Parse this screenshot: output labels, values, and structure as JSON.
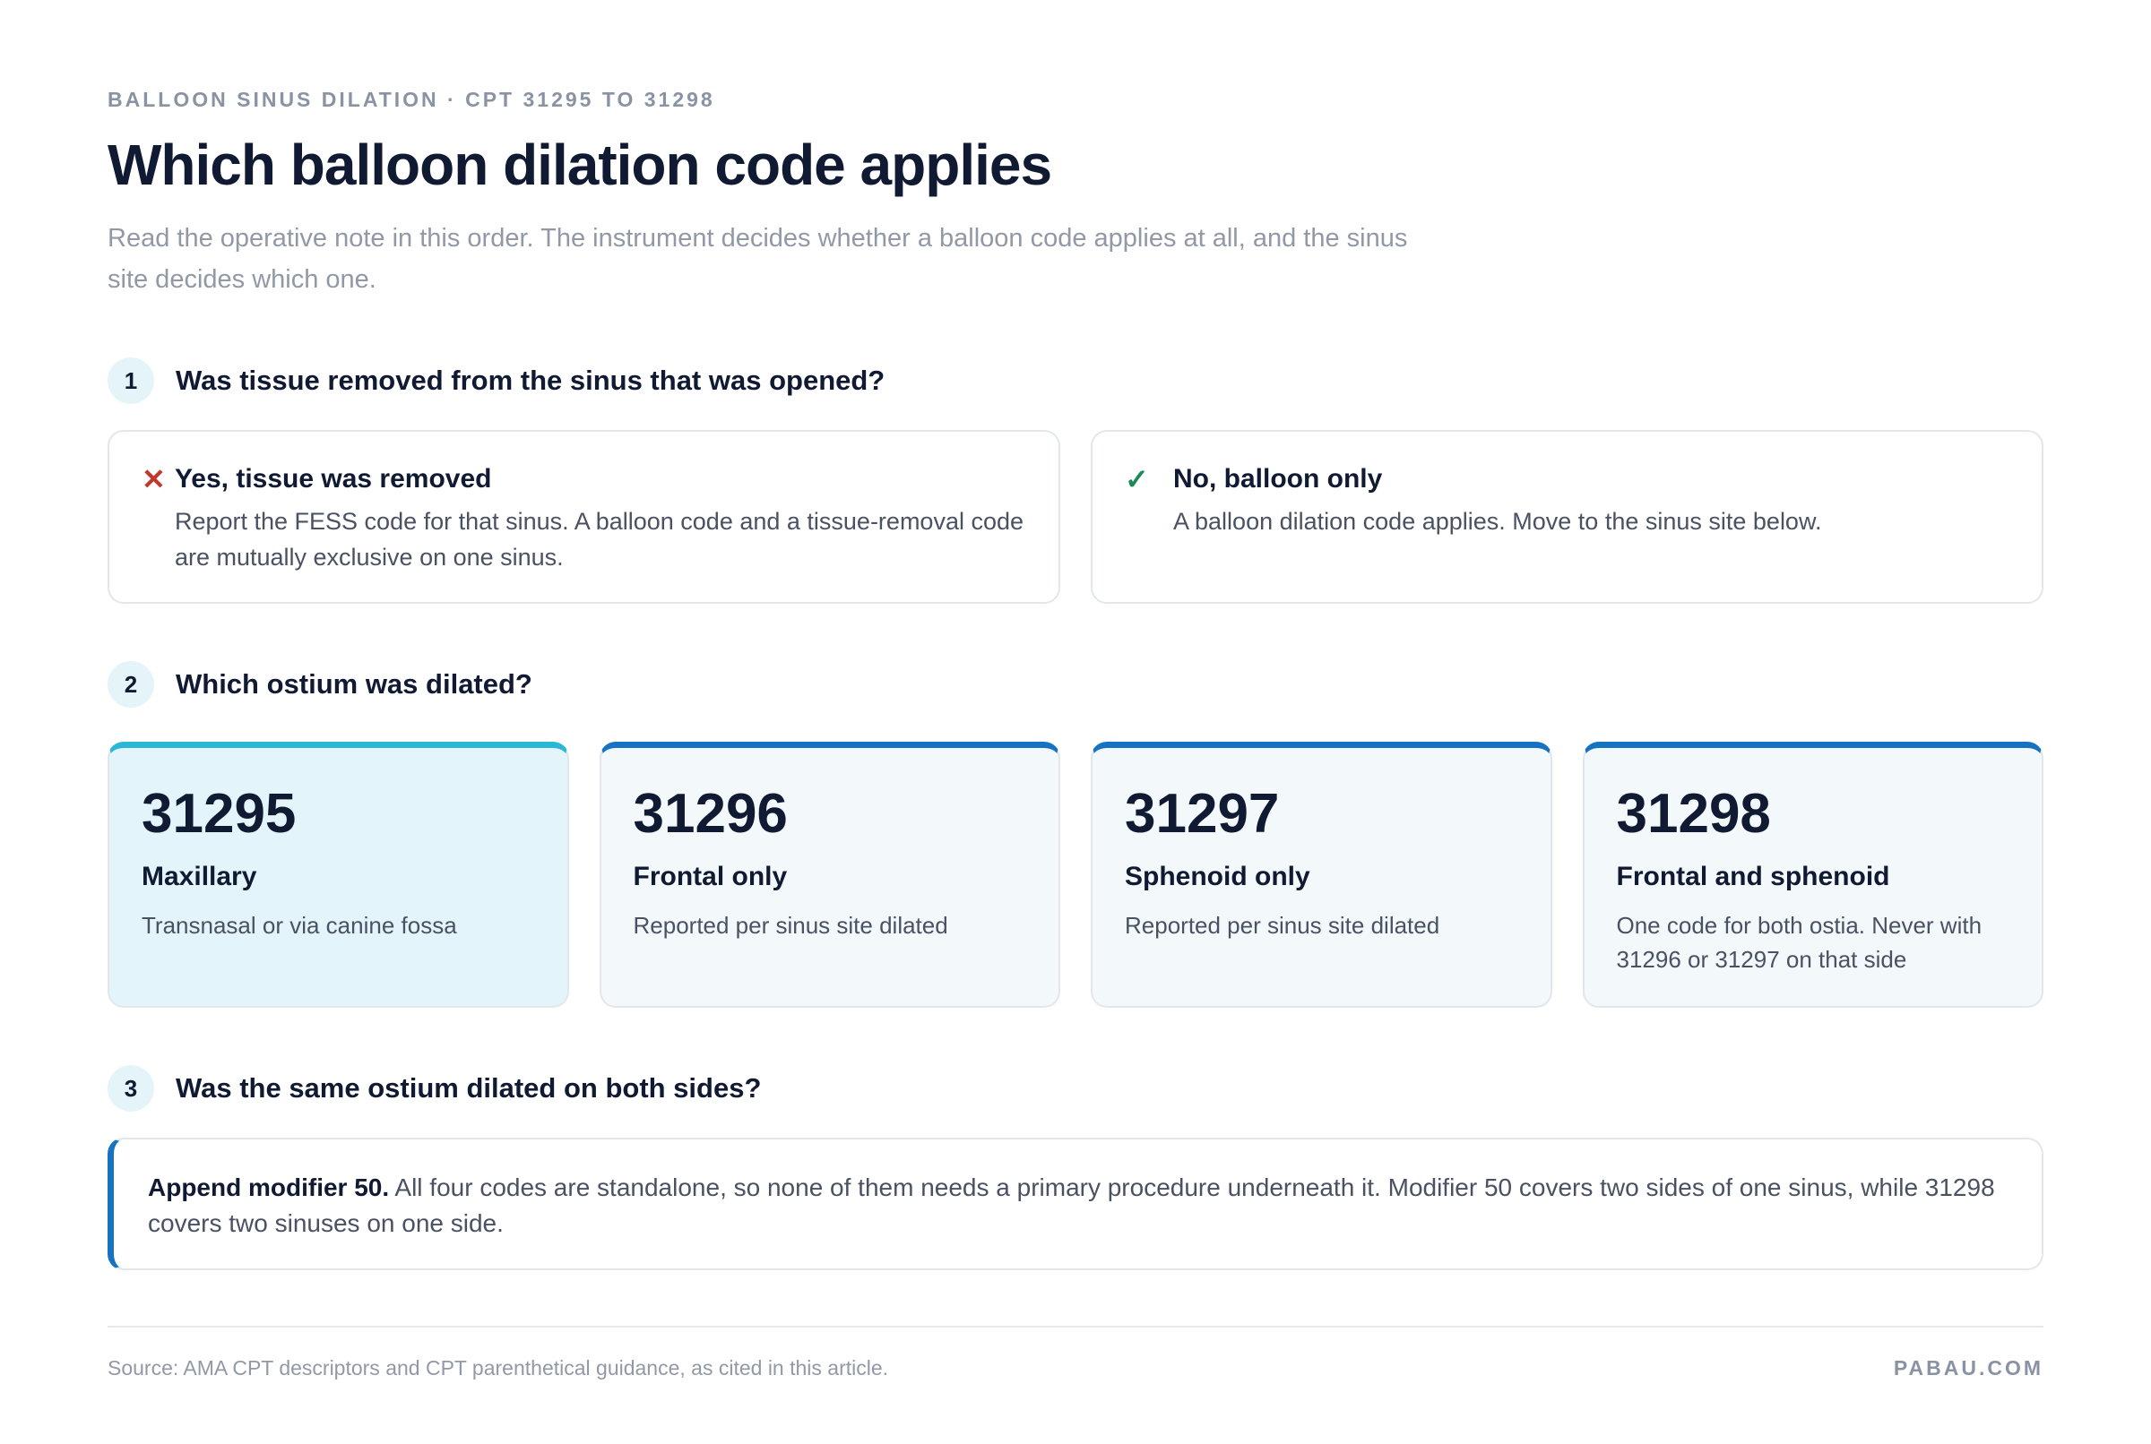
{
  "header": {
    "eyebrow": "BALLOON SINUS DILATION · CPT 31295 TO 31298",
    "title": "Which balloon dilation code applies",
    "intro": "Read the operative note in this order. The instrument decides whether a balloon code applies at all, and the sinus site decides which one."
  },
  "steps": [
    {
      "number": "1",
      "question": "Was tissue removed from the sinus that was opened?",
      "options": [
        {
          "title": "Yes, tissue was removed",
          "text": "Report the FESS code for that sinus. A balloon code and a tissue-removal code are mutually exclusive on one sinus."
        },
        {
          "title": "No, balloon only",
          "text": "A balloon dilation code applies. Move to the sinus site below."
        }
      ]
    },
    {
      "number": "2",
      "question": "Which ostium was dilated?",
      "codes": [
        {
          "code": "31295",
          "site": "Maxillary",
          "text": "Transnasal or via canine fossa"
        },
        {
          "code": "31296",
          "site": "Frontal only",
          "text": "Reported per sinus site dilated"
        },
        {
          "code": "31297",
          "site": "Sphenoid only",
          "text": "Reported per sinus site dilated"
        },
        {
          "code": "31298",
          "site": "Frontal and sphenoid",
          "text": "One code for both ostia. Never with 31296 or 31297 on that side"
        }
      ]
    },
    {
      "number": "3",
      "question": "Was the same ostium dilated on both sides?",
      "note": {
        "lead": "Append modifier 50.",
        "text": "All four codes are standalone, so none of them needs a primary procedure underneath it. Modifier 50 covers two sides of one sinus, while 31298 covers two sinuses on one side."
      }
    }
  ],
  "footer": {
    "source": "Source: AMA CPT descriptors and CPT parenthetical guidance, as cited in this article.",
    "brand": "PABAU.COM"
  }
}
